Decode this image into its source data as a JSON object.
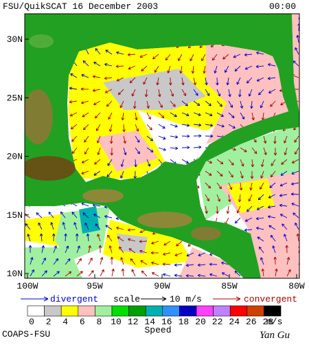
{
  "header": {
    "title": "FSU/QuikSCAT 16 December 2003",
    "time": "00:00"
  },
  "map": {
    "lat_labels": [
      "30N",
      "25N",
      "20N",
      "15N",
      "10N"
    ],
    "lon_labels": [
      "100W",
      "95W",
      "90W",
      "85W",
      "80W"
    ]
  },
  "legend": {
    "divergent": "divergent",
    "scale": "scale",
    "scale_value": "10 m/s",
    "convergent": "convergent"
  },
  "colorbar": {
    "labels": [
      "0",
      "2",
      "4",
      "6",
      "8",
      "10",
      "12",
      "14",
      "16",
      "18",
      "20",
      "22",
      "24",
      "26",
      "28"
    ],
    "unit": "m/s",
    "title": "Speed",
    "colors": [
      "#ffffff",
      "#c8c8c8",
      "#ffff00",
      "#ffc0c0",
      "#a0f0a0",
      "#00e000",
      "#00a000",
      "#00b0b0",
      "#3090ff",
      "#0000c0",
      "#ff40ff",
      "#c080ff",
      "#ff0000",
      "#d04000",
      "#000000"
    ]
  },
  "footer": {
    "credit": "COAPS-FSU",
    "signature": "Yan Gu"
  }
}
